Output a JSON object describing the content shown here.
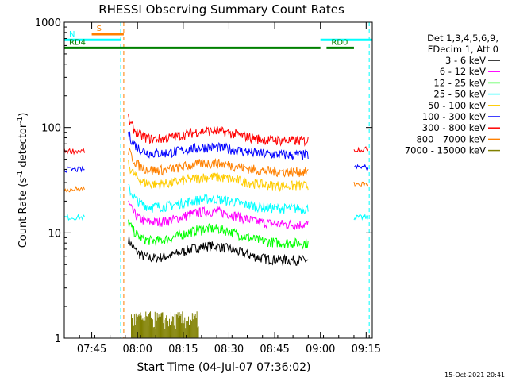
{
  "chart_data": {
    "type": "line",
    "title": "RHESSI Observing Summary Count Rates",
    "xlabel": "Start Time (04-Jul-07 07:36:02)",
    "ylabel_main": "Count Rate (s",
    "ylabel_sup1": "-1",
    "ylabel_mid": " detector",
    "ylabel_sup2": "-1",
    "ylabel_end": ")",
    "yscale": "log",
    "ylim": [
      1,
      1000
    ],
    "xlim_minutes": [
      456,
      557
    ],
    "x_ticks": [
      {
        "t": 465,
        "label": "07:45"
      },
      {
        "t": 480,
        "label": "08:00"
      },
      {
        "t": 495,
        "label": "08:15"
      },
      {
        "t": 510,
        "label": "08:30"
      },
      {
        "t": 525,
        "label": "08:45"
      },
      {
        "t": 540,
        "label": "09:00"
      },
      {
        "t": 555,
        "label": "09:15"
      }
    ],
    "y_ticks": [
      {
        "v": 1,
        "label": "1"
      },
      {
        "v": 10,
        "label": "10"
      },
      {
        "v": 100,
        "label": "100"
      },
      {
        "v": 1000,
        "label": "1000"
      }
    ],
    "legend_header": [
      "Det 1,3,4,5,6,9,",
      "FDecim 1, Att 0"
    ],
    "series": [
      {
        "name": "3 - 6 keV",
        "color": "#000000",
        "pre": 0,
        "post": 0,
        "base": 5.5,
        "peak": 2.0
      },
      {
        "name": "6 - 12 keV",
        "color": "#ff00ff",
        "pre": 0,
        "post": 0,
        "base": 12.0,
        "peak": 4.0
      },
      {
        "name": "12 - 25 keV",
        "color": "#00ff00",
        "pre": 0,
        "post": 0,
        "base": 8.0,
        "peak": 3.0
      },
      {
        "name": "25 - 50 keV",
        "color": "#00ffff",
        "pre": 14,
        "post": 14,
        "base": 17.0,
        "peak": 4.0
      },
      {
        "name": "50 - 100 keV",
        "color": "#ffcc00",
        "pre": 0,
        "post": 0,
        "base": 28.0,
        "peak": 6.0
      },
      {
        "name": "100 - 300 keV",
        "color": "#0000ff",
        "pre": 40,
        "post": 42,
        "base": 55.0,
        "peak": 10.0
      },
      {
        "name": "300 - 800 keV",
        "color": "#ff0000",
        "pre": 60,
        "post": 62,
        "base": 75.0,
        "peak": 18.0
      },
      {
        "name": "800 - 7000 keV",
        "color": "#ff8000",
        "pre": 26,
        "post": 29,
        "base": 38.0,
        "peak": 8.0
      },
      {
        "name": "7000 - 15000 keV",
        "color": "#808000",
        "pre": 0,
        "post": 0,
        "base": 0,
        "peak": 0
      }
    ],
    "flags": [
      {
        "label": "S",
        "color": "#ff8000",
        "t0": 465,
        "t1": 475.5,
        "v": 770
      },
      {
        "label": "N",
        "color": "#00ffff",
        "t0": 456,
        "t1": 474.5,
        "v": 680
      },
      {
        "label": "",
        "color": "#00ffff",
        "t0": 540,
        "t1": 557,
        "v": 680
      },
      {
        "label": "RD0",
        "color": "#008000",
        "t0": 542,
        "t1": 551,
        "v": 570
      },
      {
        "label": "RD4",
        "color": "#008000",
        "t0": 456,
        "t1": 540,
        "v": 570
      }
    ],
    "footer_date": "15-Oct-2021 20:41"
  }
}
